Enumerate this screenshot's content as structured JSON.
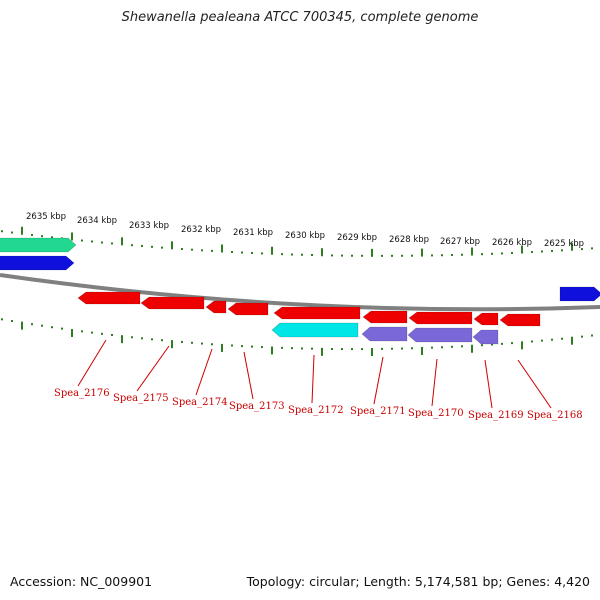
{
  "title": "Shewanella pealeana ATCC 700345, complete genome",
  "footer": {
    "accession": "Accession: NC_009901",
    "summary": "Topology: circular; Length: 5,174,581 bp; Genes: 4,420"
  },
  "colors": {
    "backbone": "#808080",
    "ticks": "#2e7d1e",
    "gene_red": "#ee0000",
    "gene_cyan": "#00e5e5",
    "gene_purple": "#7b68d8",
    "gene_blue": "#1010dd",
    "gene_teal": "#20d890",
    "label": "#cc0000"
  },
  "scale_labels": [
    "2635 kbp",
    "2634 kbp",
    "2633 kbp",
    "2632 kbp",
    "2631 kbp",
    "2630 kbp",
    "2629 kbp",
    "2628 kbp",
    "2627 kbp",
    "2626 kbp",
    "2625 kbp"
  ],
  "genes": [
    {
      "name": "Spea_2176",
      "strand": "reverse",
      "color": "red"
    },
    {
      "name": "Spea_2175",
      "strand": "reverse",
      "color": "red"
    },
    {
      "name": "Spea_2174",
      "strand": "reverse",
      "color": "red"
    },
    {
      "name": "Spea_2173",
      "strand": "reverse",
      "color": "red"
    },
    {
      "name": "Spea_2172",
      "strand": "reverse",
      "color": "red"
    },
    {
      "name": "Spea_2171",
      "strand": "reverse",
      "color": "red"
    },
    {
      "name": "Spea_2170",
      "strand": "reverse",
      "color": "red"
    },
    {
      "name": "Spea_2169",
      "strand": "reverse",
      "color": "red"
    },
    {
      "name": "Spea_2168",
      "strand": "reverse",
      "color": "red"
    }
  ]
}
